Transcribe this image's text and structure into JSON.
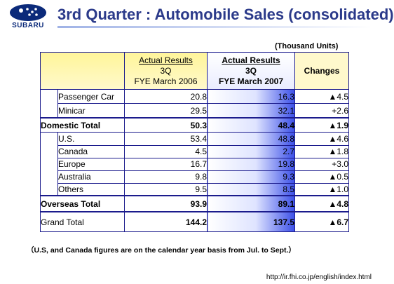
{
  "brand": "SUBARU",
  "title": "3rd Quarter : Automobile Sales (consolidated)",
  "units_note": "(Thousand Units)",
  "table": {
    "headers": {
      "col2006": {
        "line1": "Actual Results",
        "line2": "3Q",
        "line3": "FYE March 2006"
      },
      "col2007": {
        "line1": "Actual Results",
        "line2": "3Q",
        "line3": "FYE March 2007"
      },
      "changes": "Changes"
    },
    "rows": [
      {
        "label": "Passenger Car",
        "v2006": "20.8",
        "v2007": "16.3",
        "change": "▲4.5"
      },
      {
        "label": "Minicar",
        "v2006": "29.5",
        "v2007": "32.1",
        "change": "+2.6"
      },
      {
        "label": "Domestic Total",
        "v2006": "50.3",
        "v2007": "48.4",
        "change": "▲1.9"
      },
      {
        "label": "U.S.",
        "v2006": "53.4",
        "v2007": "48.8",
        "change": "▲4.6"
      },
      {
        "label": "Canada",
        "v2006": "4.5",
        "v2007": "2.7",
        "change": "▲1.8"
      },
      {
        "label": "Europe",
        "v2006": "16.7",
        "v2007": "19.8",
        "change": "+3.0"
      },
      {
        "label": "Australia",
        "v2006": "9.8",
        "v2007": "9.3",
        "change": "▲0.5"
      },
      {
        "label": "Others",
        "v2006": "9.5",
        "v2007": "8.5",
        "change": "▲1.0"
      },
      {
        "label": "Overseas Total",
        "v2006": "93.9",
        "v2007": "89.1",
        "change": "▲4.8"
      },
      {
        "label": "Grand Total",
        "v2006": "144.2",
        "v2007": "137.5",
        "change": "▲6.7"
      }
    ]
  },
  "footnote": "（U.S, and Canada figures are on the calendar year basis from Jul. to Sept.）",
  "url": "http://ir.fhi.co.jp/english/index.html",
  "colors": {
    "brand_blue": "#0b2a7a",
    "title": "#2b3a8a",
    "negative": "#e00000",
    "border": "#1b1b8c",
    "header_yellow": "#fff59a"
  }
}
